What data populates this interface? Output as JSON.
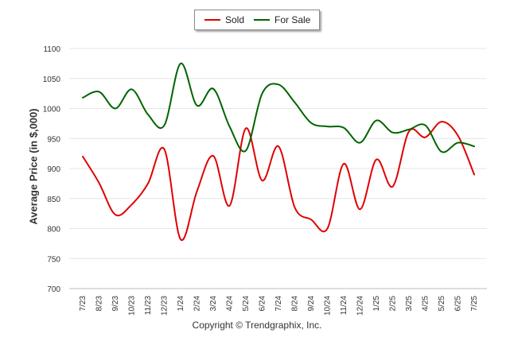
{
  "copyright": "Copyright © Trendgraphix, Inc.",
  "chart_data": {
    "type": "line",
    "title": "",
    "xlabel": "",
    "ylabel": "Average Price (in $,000)",
    "ylim": [
      700,
      1100
    ],
    "yticks": [
      700,
      750,
      800,
      850,
      900,
      950,
      1000,
      1050,
      1100
    ],
    "grid": true,
    "legend_position": "top-center",
    "categories": [
      "7/23",
      "8/23",
      "9/23",
      "10/23",
      "11/23",
      "12/23",
      "1/24",
      "2/24",
      "3/24",
      "4/24",
      "5/24",
      "6/24",
      "7/24",
      "8/24",
      "9/24",
      "10/24",
      "11/24",
      "12/24",
      "1/25",
      "2/25",
      "3/25",
      "4/25",
      "5/25",
      "6/25",
      "7/25"
    ],
    "series": [
      {
        "name": "Sold",
        "color": "#e00000",
        "values": [
          920,
          876,
          823,
          840,
          875,
          932,
          782,
          862,
          921,
          838,
          967,
          880,
          937,
          835,
          815,
          800,
          908,
          832,
          915,
          870,
          962,
          952,
          978,
          955,
          890
        ]
      },
      {
        "name": "For Sale",
        "color": "#006400",
        "values": [
          1018,
          1028,
          1000,
          1032,
          990,
          972,
          1075,
          1005,
          1033,
          970,
          930,
          1025,
          1040,
          1010,
          976,
          970,
          968,
          943,
          980,
          960,
          965,
          972,
          928,
          943,
          937
        ]
      }
    ]
  }
}
